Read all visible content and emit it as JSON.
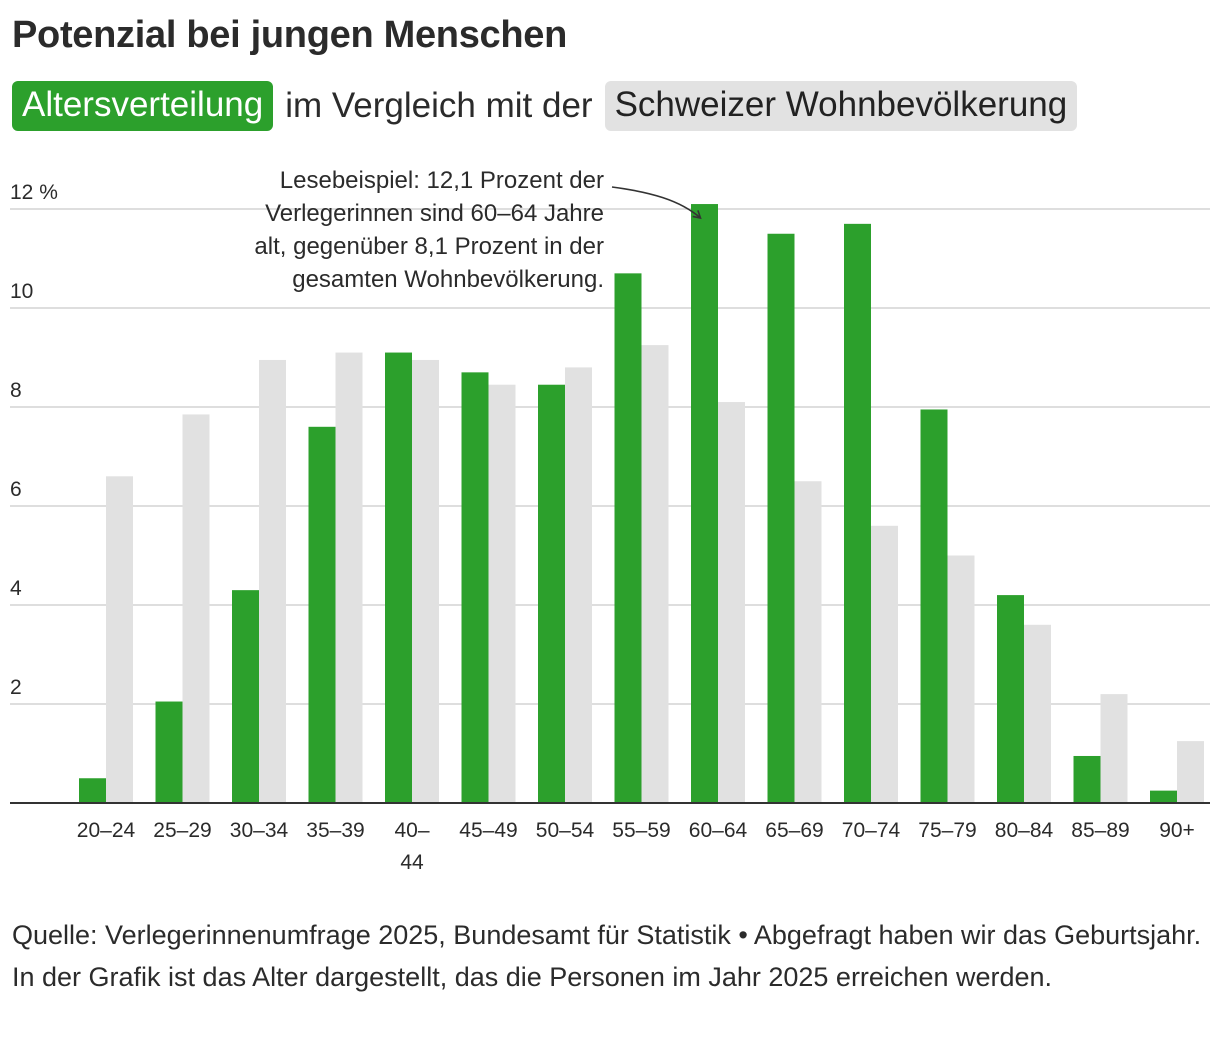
{
  "header": {
    "title": "Potenzial bei jungen Menschen",
    "legend_green": "Altersverteilung",
    "connector": "im Vergleich mit der",
    "legend_grey": "Schweizer Wohnbevölkerung"
  },
  "colors": {
    "green": "#2ca02c",
    "grey": "#e1e1e1",
    "grid": "#d4d4d4",
    "axis": "#333333",
    "text": "#2b2b2b"
  },
  "chart_data": {
    "type": "bar",
    "title": "Potenzial bei jungen Menschen",
    "xlabel": "",
    "ylabel": "",
    "ylim": [
      0,
      12
    ],
    "yticks": [
      2,
      4,
      6,
      8,
      10,
      12
    ],
    "ytick_labels": [
      "2",
      "4",
      "6",
      "8",
      "10",
      "12 %"
    ],
    "categories": [
      "20–24",
      "25–29",
      "30–34",
      "35–39",
      "40–44",
      "45–49",
      "50–54",
      "55–59",
      "60–64",
      "65–69",
      "70–74",
      "75–79",
      "80–84",
      "85–89",
      "90+"
    ],
    "category_labels": [
      [
        "20–24"
      ],
      [
        "25–29"
      ],
      [
        "30–34"
      ],
      [
        "35–39"
      ],
      [
        "40–",
        "44"
      ],
      [
        "45–49"
      ],
      [
        "50–54"
      ],
      [
        "55–59"
      ],
      [
        "60–64"
      ],
      [
        "65–69"
      ],
      [
        "70–74"
      ],
      [
        "75–79"
      ],
      [
        "80–84"
      ],
      [
        "85–89"
      ],
      [
        "90+"
      ]
    ],
    "series": [
      {
        "name": "Altersverteilung",
        "color": "#2ca02c",
        "values": [
          0.5,
          2.05,
          4.3,
          7.6,
          9.1,
          8.7,
          8.45,
          10.7,
          12.1,
          11.5,
          11.7,
          7.95,
          4.2,
          0.95,
          0.25
        ]
      },
      {
        "name": "Schweizer Wohnbevölkerung",
        "color": "#e1e1e1",
        "values": [
          6.6,
          7.85,
          8.95,
          9.1,
          8.95,
          8.45,
          8.8,
          9.25,
          8.1,
          6.5,
          5.6,
          5.0,
          3.6,
          2.2,
          1.25
        ]
      }
    ],
    "annotation": {
      "lines": [
        "Lesebeispiel: 12,1 Prozent der",
        "Verlegerinnen sind 60–64 Jahre",
        "alt, gegenüber 8,1 Prozent in der",
        "gesamten Wohnbevölkerung."
      ],
      "target_category": "60–64",
      "target_value": 12.1
    }
  },
  "footer": {
    "source": "Quelle: Verlegerinnenumfrage 2025, Bundesamt für Statistik • Abgefragt haben wir das Geburtsjahr. In der Grafik ist das Alter dargestellt, das die Personen im Jahr 2025 erreichen werden."
  }
}
